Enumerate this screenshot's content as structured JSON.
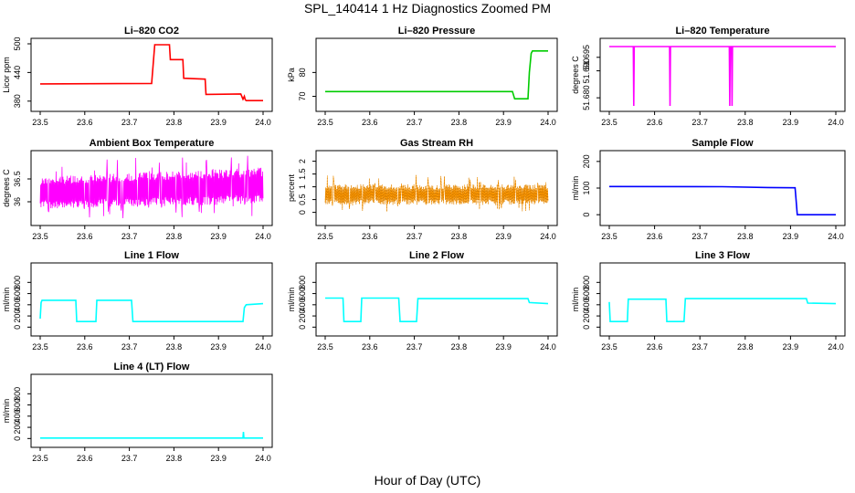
{
  "figure": {
    "title": "SPL_140414  1 Hz Diagnostics Zoomed PM",
    "xlabel": "Hour of Day (UTC)"
  },
  "chart_data": [
    {
      "type": "line",
      "title": "Li–820 CO2",
      "ylabel": "Licor ppm",
      "color": "#ff0000",
      "xlim": [
        23.5,
        24.0
      ],
      "ylim": [
        370,
        500
      ],
      "xticks": [
        "23.5",
        "23.6",
        "23.7",
        "23.8",
        "23.9",
        "24.0"
      ],
      "yticks": [
        380,
        440,
        500
      ],
      "series": [
        {
          "x": [
            23.5,
            23.75,
            23.757,
            23.79,
            23.792,
            23.82,
            23.822,
            23.87,
            23.872,
            23.95,
            23.955,
            23.958,
            23.96,
            23.962,
            24.0
          ],
          "y": [
            416,
            417,
            498,
            498,
            467,
            467,
            428,
            426,
            394,
            395,
            384,
            390,
            383,
            381,
            381
          ]
        }
      ]
    },
    {
      "type": "line",
      "title": "Li–820 Pressure",
      "ylabel": "kPa",
      "color": "#00cc00",
      "xlim": [
        23.5,
        24.0
      ],
      "ylim": [
        66,
        92
      ],
      "xticks": [
        "23.5",
        "23.6",
        "23.7",
        "23.8",
        "23.9",
        "24.0"
      ],
      "yticks": [
        70,
        80
      ],
      "series": [
        {
          "x": [
            23.5,
            23.92,
            23.925,
            23.955,
            23.958,
            23.962,
            23.965,
            24.0
          ],
          "y": [
            72,
            72,
            69,
            69,
            80,
            88,
            89,
            89
          ]
        }
      ]
    },
    {
      "type": "line",
      "title": "Li–820 Temperature",
      "ylabel": "degrees C",
      "color": "#ff00ff",
      "xlim": [
        23.5,
        24.0
      ],
      "ylim": [
        51.677,
        51.7
      ],
      "xticks": [
        "23.5",
        "23.6",
        "23.7",
        "23.8",
        "23.9",
        "24.0"
      ],
      "yticks": [
        "51.680",
        "51.690",
        "51.695"
      ],
      "series": [
        {
          "x": [
            23.5,
            23.553,
            23.554,
            23.555,
            23.556,
            23.633,
            23.634,
            23.635,
            23.765,
            23.766,
            23.767,
            23.77,
            23.771,
            23.772,
            24.0
          ],
          "y": [
            51.699,
            51.699,
            51.677,
            51.699,
            51.699,
            51.699,
            51.677,
            51.699,
            51.699,
            51.677,
            51.699,
            51.699,
            51.677,
            51.699,
            51.699
          ]
        }
      ]
    },
    {
      "type": "line",
      "title": "Ambient Box Temperature",
      "ylabel": "degrees C",
      "color": "#ff00ff",
      "noise": true,
      "xlim": [
        23.5,
        24.0
      ],
      "ylim": [
        35.6,
        37.0
      ],
      "xticks": [
        "23.5",
        "23.6",
        "23.7",
        "23.8",
        "23.9",
        "24.0"
      ],
      "yticks": [
        36.0,
        36.5
      ],
      "series": [
        {
          "x": [
            23.5,
            24.0
          ],
          "y_low": [
            35.85,
            35.95
          ],
          "y_high": [
            36.55,
            36.75
          ]
        }
      ]
    },
    {
      "type": "line",
      "title": "Gas Stream RH",
      "ylabel": "percent",
      "color": "#ff9900",
      "noise": true,
      "xlim": [
        23.5,
        24.0
      ],
      "ylim": [
        -0.3,
        2.2
      ],
      "xticks": [
        "23.5",
        "23.6",
        "23.7",
        "23.8",
        "23.9",
        "24.0"
      ],
      "yticks": [
        0.0,
        0.5,
        1.0,
        1.5,
        2.0
      ],
      "series": [
        {
          "x": [
            23.5,
            24.0
          ],
          "y_low": [
            0.3,
            0.3
          ],
          "y_high": [
            1.1,
            1.1
          ]
        }
      ]
    },
    {
      "type": "line",
      "title": "Sample Flow",
      "ylabel": "ml/min",
      "color": "#0000ff",
      "xlim": [
        23.5,
        24.0
      ],
      "ylim": [
        -20,
        220
      ],
      "xticks": [
        "23.5",
        "23.6",
        "23.7",
        "23.8",
        "23.9",
        "24.0"
      ],
      "yticks": [
        0,
        100,
        200
      ],
      "series": [
        {
          "x": [
            23.5,
            23.75,
            23.85,
            23.91,
            23.912,
            23.915,
            24.0
          ],
          "y": [
            106,
            105,
            102,
            101,
            60,
            0,
            0
          ]
        }
      ]
    },
    {
      "type": "line",
      "title": "Line 1 Flow",
      "ylabel": "ml/min",
      "color": "#00ffff",
      "xlim": [
        23.5,
        24.0
      ],
      "ylim": [
        -60,
        1050
      ],
      "xticks": [
        "23.5",
        "23.6",
        "23.7",
        "23.8",
        "23.9",
        "24.0"
      ],
      "yticks": [
        0,
        200,
        400,
        600,
        800
      ],
      "series": [
        {
          "x": [
            23.5,
            23.502,
            23.504,
            23.58,
            23.582,
            23.625,
            23.627,
            23.705,
            23.708,
            23.955,
            23.958,
            23.962,
            24.0
          ],
          "y": [
            150,
            440,
            480,
            480,
            100,
            100,
            480,
            480,
            100,
            100,
            350,
            400,
            420
          ]
        }
      ]
    },
    {
      "type": "line",
      "title": "Line 2 Flow",
      "ylabel": "ml/min",
      "color": "#00ffff",
      "xlim": [
        23.5,
        24.0
      ],
      "ylim": [
        -60,
        1050
      ],
      "xticks": [
        "23.5",
        "23.6",
        "23.7",
        "23.8",
        "23.9",
        "24.0"
      ],
      "yticks": [
        0,
        200,
        400,
        600,
        800
      ],
      "series": [
        {
          "x": [
            23.5,
            23.54,
            23.542,
            23.58,
            23.582,
            23.665,
            23.668,
            23.705,
            23.708,
            23.955,
            23.958,
            24.0
          ],
          "y": [
            520,
            520,
            100,
            100,
            520,
            520,
            100,
            100,
            510,
            510,
            440,
            420
          ]
        }
      ]
    },
    {
      "type": "line",
      "title": "Line 3 Flow",
      "ylabel": "ml/min",
      "color": "#00ffff",
      "xlim": [
        23.5,
        24.0
      ],
      "ylim": [
        -60,
        1050
      ],
      "xticks": [
        "23.5",
        "23.6",
        "23.7",
        "23.8",
        "23.9",
        "24.0"
      ],
      "yticks": [
        0,
        200,
        400,
        600,
        800
      ],
      "series": [
        {
          "x": [
            23.5,
            23.502,
            23.504,
            23.54,
            23.542,
            23.625,
            23.627,
            23.665,
            23.668,
            23.935,
            23.938,
            24.0
          ],
          "y": [
            450,
            100,
            100,
            100,
            500,
            500,
            100,
            100,
            510,
            510,
            430,
            420
          ]
        }
      ]
    },
    {
      "type": "line",
      "title": "Line 4 (LT) Flow",
      "ylabel": "ml/min",
      "color": "#00ffff",
      "xlim": [
        23.5,
        24.0
      ],
      "ylim": [
        -60,
        1050
      ],
      "xticks": [
        "23.5",
        "23.6",
        "23.7",
        "23.8",
        "23.9",
        "24.0"
      ],
      "yticks": [
        0,
        200,
        400,
        600,
        800
      ],
      "series": [
        {
          "x": [
            23.5,
            23.955,
            23.956,
            23.957,
            23.958,
            24.0
          ],
          "y": [
            8,
            8,
            120,
            8,
            8,
            8
          ]
        }
      ]
    }
  ]
}
